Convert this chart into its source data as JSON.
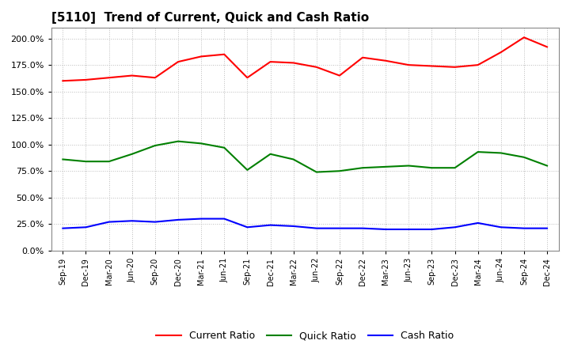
{
  "title": "[5110]  Trend of Current, Quick and Cash Ratio",
  "x_labels": [
    "Sep-19",
    "Dec-19",
    "Mar-20",
    "Jun-20",
    "Sep-20",
    "Dec-20",
    "Mar-21",
    "Jun-21",
    "Sep-21",
    "Dec-21",
    "Mar-22",
    "Jun-22",
    "Sep-22",
    "Dec-22",
    "Mar-23",
    "Jun-23",
    "Sep-23",
    "Dec-23",
    "Mar-24",
    "Jun-24",
    "Sep-24",
    "Dec-24"
  ],
  "current_ratio": [
    1.6,
    1.61,
    1.63,
    1.65,
    1.63,
    1.78,
    1.83,
    1.85,
    1.63,
    1.78,
    1.77,
    1.73,
    1.65,
    1.82,
    1.79,
    1.75,
    1.74,
    1.73,
    1.75,
    1.87,
    2.01,
    1.92
  ],
  "quick_ratio": [
    0.86,
    0.84,
    0.84,
    0.91,
    0.99,
    1.03,
    1.01,
    0.97,
    0.76,
    0.91,
    0.86,
    0.74,
    0.75,
    0.78,
    0.79,
    0.8,
    0.78,
    0.78,
    0.93,
    0.92,
    0.88,
    0.8
  ],
  "cash_ratio": [
    0.21,
    0.22,
    0.27,
    0.28,
    0.27,
    0.29,
    0.3,
    0.3,
    0.22,
    0.24,
    0.23,
    0.21,
    0.21,
    0.21,
    0.2,
    0.2,
    0.2,
    0.22,
    0.26,
    0.22,
    0.21,
    0.21
  ],
  "current_color": "#FF0000",
  "quick_color": "#008000",
  "cash_color": "#0000FF",
  "ylim": [
    0.0,
    2.1
  ],
  "yticks": [
    0.0,
    0.25,
    0.5,
    0.75,
    1.0,
    1.25,
    1.5,
    1.75,
    2.0
  ],
  "background_color": "#FFFFFF",
  "grid_color": "#BBBBBB",
  "legend_labels": [
    "Current Ratio",
    "Quick Ratio",
    "Cash Ratio"
  ],
  "title_fontsize": 11,
  "tick_fontsize": 7,
  "legend_fontsize": 9
}
